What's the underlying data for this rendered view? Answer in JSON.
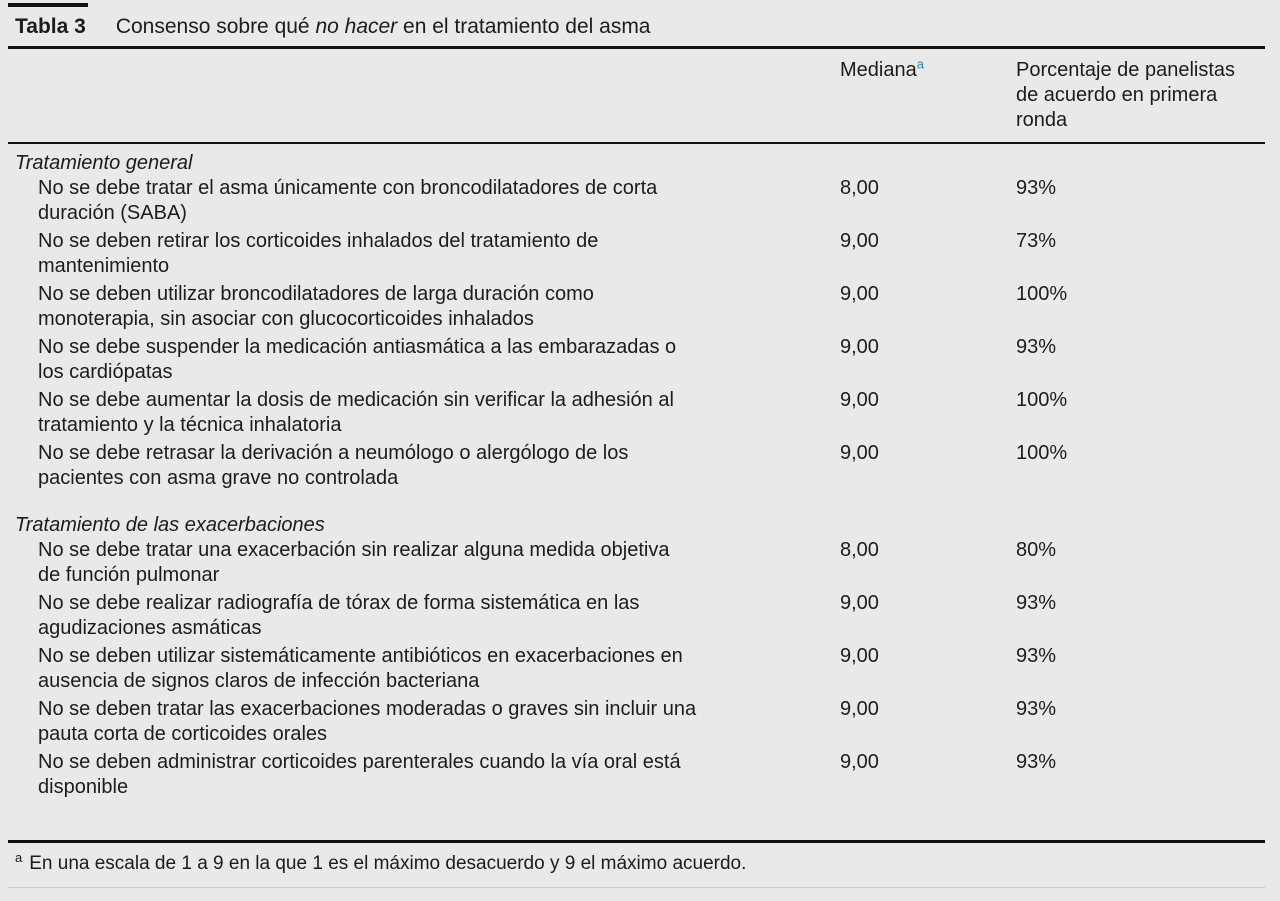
{
  "page": {
    "background": "#e9e9e9",
    "rule_color": "#111111",
    "accent_blue": "#2e7fb5"
  },
  "title": {
    "label": "Tabla 3",
    "caption_prefix": "Consenso sobre qué ",
    "caption_italic": "no hacer",
    "caption_suffix": " en el tratamiento del asma"
  },
  "columns": {
    "mediana_label": "Mediana",
    "mediana_superscript": "a",
    "porcentaje_label": "Porcentaje de panelistas\nde acuerdo en primera\nronda"
  },
  "table": {
    "sections": [
      {
        "heading": "Tratamiento general",
        "rows": [
          {
            "text": "No se debe tratar el asma únicamente con broncodilatadores de corta\nduración (SABA)",
            "mediana": "8,00",
            "porcentaje": "93%"
          },
          {
            "text": "No se deben retirar los corticoides inhalados del tratamiento de\nmantenimiento",
            "mediana": "9,00",
            "porcentaje": "73%"
          },
          {
            "text": "No se deben utilizar broncodilatadores de larga duración como\nmonoterapia, sin asociar con glucocorticoides inhalados",
            "mediana": "9,00",
            "porcentaje": "100%"
          },
          {
            "text": "No se debe suspender la medicación antiasmática a las embarazadas o\nlos cardiópatas",
            "mediana": "9,00",
            "porcentaje": "93%"
          },
          {
            "text": "No se debe aumentar la dosis de medicación sin verificar la adhesión al\ntratamiento y la técnica inhalatoria",
            "mediana": "9,00",
            "porcentaje": "100%"
          },
          {
            "text": "No se debe retrasar la derivación a neumólogo o alergólogo de los\npacientes con asma grave no controlada",
            "mediana": "9,00",
            "porcentaje": "100%"
          }
        ]
      },
      {
        "heading": "Tratamiento de las exacerbaciones",
        "rows": [
          {
            "text": "No se debe tratar una exacerbación sin realizar alguna medida objetiva\nde función pulmonar",
            "mediana": "8,00",
            "porcentaje": "80%"
          },
          {
            "text": "No se debe realizar radiografía de tórax de forma sistemática en las\nagudizaciones asmáticas",
            "mediana": "9,00",
            "porcentaje": "93%"
          },
          {
            "text": "No se deben utilizar sistemáticamente antibióticos en exacerbaciones en\nausencia de signos claros de infección bacteriana",
            "mediana": "9,00",
            "porcentaje": "93%"
          },
          {
            "text": "No se deben tratar las exacerbaciones moderadas o graves sin incluir una\npauta corta de corticoides orales",
            "mediana": "9,00",
            "porcentaje": "93%"
          },
          {
            "text": "No se deben administrar corticoides parenterales cuando la vía oral está\ndisponible",
            "mediana": "9,00",
            "porcentaje": "93%"
          }
        ]
      }
    ]
  },
  "footnote": {
    "marker": "a",
    "text": "En una escala de 1 a 9 en la que 1 es el máximo desacuerdo y 9 el máximo acuerdo."
  }
}
